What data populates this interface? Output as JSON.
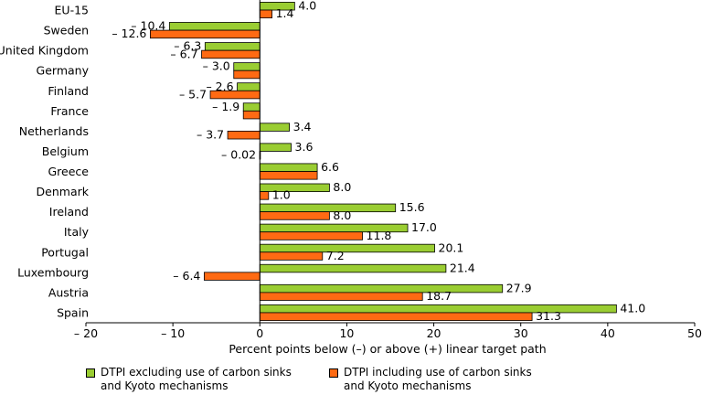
{
  "chart_data": {
    "type": "bar",
    "orientation": "horizontal",
    "categories": [
      "EU-15",
      "Sweden",
      "United Kingdom",
      "Germany",
      "Finland",
      "France",
      "Netherlands",
      "Belgium",
      "Greece",
      "Denmark",
      "Ireland",
      "Italy",
      "Portugal",
      "Luxembourg",
      "Austria",
      "Spain"
    ],
    "series": [
      {
        "name": "DTPI excluding use of carbon sinks and Kyoto mechanisms",
        "color": "#9ACD32",
        "values": [
          4.0,
          -10.4,
          -6.3,
          -3.0,
          -2.6,
          -1.9,
          3.4,
          3.6,
          6.6,
          8.0,
          15.6,
          17.0,
          20.1,
          21.4,
          27.9,
          41.0
        ],
        "labels": [
          "4.0",
          "– 10.4",
          "– 6.3",
          "– 3.0",
          "– 2.6",
          "– 1.9",
          "3.4",
          "3.6",
          "6.6",
          "8.0",
          "15.6",
          "17.0",
          "20.1",
          "21.4",
          "27.9",
          "41.0"
        ]
      },
      {
        "name": "DTPI including use of carbon sinks and Kyoto mechanisms",
        "color": "#FF6A13",
        "values": [
          1.4,
          -12.6,
          -6.7,
          -3.0,
          -5.7,
          -1.9,
          -3.7,
          -0.02,
          6.6,
          1.0,
          8.0,
          11.8,
          7.2,
          -6.4,
          18.7,
          31.3
        ],
        "labels": [
          "1.4",
          "– 12.6",
          "– 6.7",
          "",
          "– 5.7",
          "",
          "– 3.7",
          "– 0.02",
          "",
          "1.0",
          "8.0",
          "11.8",
          "7.2",
          "– 6.4",
          "18.7",
          "31.3"
        ]
      }
    ],
    "xlabel": "Percent points below (–) or above (+) linear target path",
    "xlim": [
      -20,
      50
    ],
    "xticks": [
      -20,
      -10,
      0,
      10,
      20,
      30,
      40,
      50
    ],
    "xtick_labels": [
      "– 20",
      "– 10",
      "0",
      "10",
      "20",
      "30",
      "40",
      "50"
    ],
    "grid": false,
    "legend_position": "bottom"
  }
}
